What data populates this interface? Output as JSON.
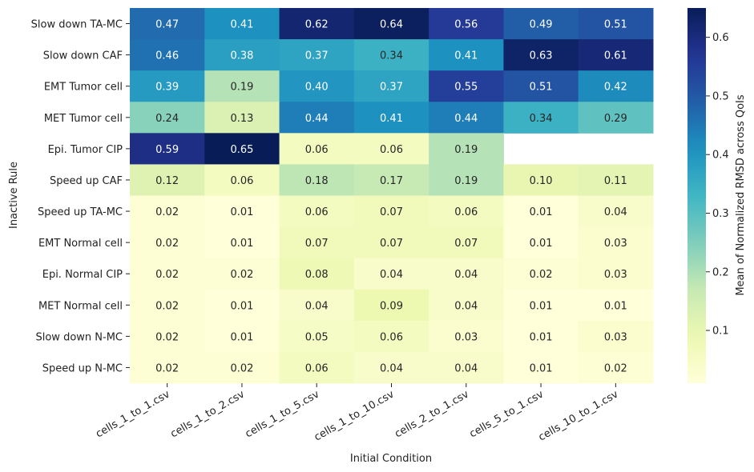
{
  "chart_data": {
    "type": "heatmap",
    "title": "",
    "xlabel": "Initial Condition",
    "ylabel": "Inactive Rule",
    "colorbar_label": "Mean of Normalized RMSD across QoIs",
    "colormap": "YlGnBu",
    "color_range": [
      0.01,
      0.65
    ],
    "colorbar_ticks": [
      "0.1",
      "0.2",
      "0.3",
      "0.4",
      "0.5",
      "0.6"
    ],
    "colorbar_tick_values": [
      0.1,
      0.2,
      0.3,
      0.4,
      0.5,
      0.6
    ],
    "columns": [
      "cells_1_to_1.csv",
      "cells_1_to_2.csv",
      "cells_1_to_5.csv",
      "cells_1_to_10.csv",
      "cells_2_to_1.csv",
      "cells_5_to_1.csv",
      "cells_10_to_1.csv"
    ],
    "rows": [
      "Slow down TA-MC",
      "Slow down CAF",
      "EMT Tumor cell",
      "MET Tumor cell",
      "Epi. Tumor CIP",
      "Speed up CAF",
      "Speed up TA-MC",
      "EMT Normal cell",
      "Epi. Normal CIP",
      "MET Normal cell",
      "Slow down N-MC",
      "Speed up N-MC"
    ],
    "values": [
      [
        0.47,
        0.41,
        0.62,
        0.64,
        0.56,
        0.49,
        0.51
      ],
      [
        0.46,
        0.38,
        0.37,
        0.34,
        0.41,
        0.63,
        0.61
      ],
      [
        0.39,
        0.19,
        0.4,
        0.37,
        0.55,
        0.51,
        0.42
      ],
      [
        0.24,
        0.13,
        0.44,
        0.41,
        0.44,
        0.34,
        0.29
      ],
      [
        0.59,
        0.65,
        0.06,
        0.06,
        0.19,
        null,
        null
      ],
      [
        0.12,
        0.06,
        0.18,
        0.17,
        0.19,
        0.1,
        0.11
      ],
      [
        0.02,
        0.01,
        0.06,
        0.07,
        0.06,
        0.01,
        0.04
      ],
      [
        0.02,
        0.01,
        0.07,
        0.07,
        0.07,
        0.01,
        0.03
      ],
      [
        0.02,
        0.02,
        0.08,
        0.04,
        0.04,
        0.02,
        0.03
      ],
      [
        0.02,
        0.01,
        0.04,
        0.09,
        0.04,
        0.01,
        0.01
      ],
      [
        0.02,
        0.01,
        0.05,
        0.06,
        0.03,
        0.01,
        0.03
      ],
      [
        0.02,
        0.02,
        0.06,
        0.04,
        0.04,
        0.01,
        0.02
      ]
    ],
    "value_format_decimals": 2,
    "legend": "colorbar-right",
    "grid": false
  }
}
